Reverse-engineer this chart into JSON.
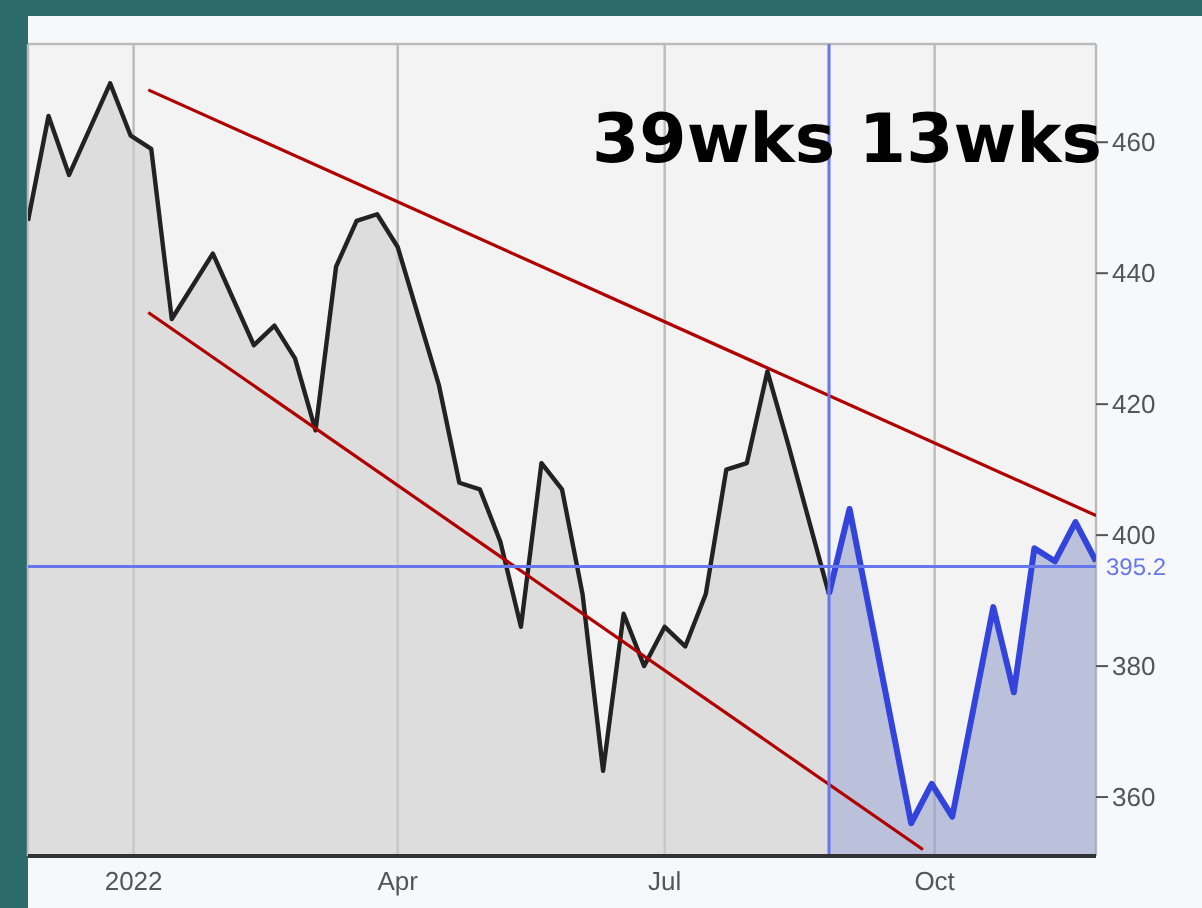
{
  "chart_data": {
    "type": "area",
    "annotations": [
      "39wks 13wks"
    ],
    "series": [
      {
        "color": "#222222",
        "x": [
          "2021-11-26",
          "2021-12-03",
          "2021-12-10",
          "2021-12-24",
          "2021-12-31",
          "2022-01-07",
          "2022-01-14",
          "2022-01-28",
          "2022-02-11",
          "2022-02-18",
          "2022-02-25",
          "2022-03-04",
          "2022-03-11",
          "2022-03-18",
          "2022-03-25",
          "2022-04-01",
          "2022-04-15",
          "2022-04-22",
          "2022-04-29",
          "2022-05-06",
          "2022-05-13",
          "2022-05-20",
          "2022-05-27",
          "2022-06-03",
          "2022-06-10",
          "2022-06-17",
          "2022-06-24",
          "2022-07-01",
          "2022-07-08",
          "2022-07-15",
          "2022-07-22",
          "2022-07-29",
          "2022-08-05",
          "2022-08-12",
          "2022-08-26"
        ],
        "values": [
          448,
          464,
          455,
          469,
          461,
          459,
          433,
          443,
          429,
          432,
          427,
          416,
          441,
          448,
          449,
          444,
          423,
          408,
          407,
          399,
          386,
          411,
          407,
          391,
          364,
          388,
          380,
          386,
          383,
          391,
          410,
          411,
          425,
          414,
          391
        ]
      },
      {
        "color": "#3344dd",
        "x": [
          "2022-08-26",
          "2022-09-02",
          "2022-09-23",
          "2022-09-30",
          "2022-10-07",
          "2022-10-21",
          "2022-10-28",
          "2022-11-04",
          "2022-11-11",
          "2022-11-18",
          "2022-11-25"
        ],
        "values": [
          391,
          404,
          356,
          362,
          357,
          389,
          376,
          398,
          396,
          402,
          396
        ]
      },
      {
        "type": "line",
        "color": "#b00000",
        "x": [
          "2022-01-06",
          "2022-11-25"
        ],
        "values": [
          468,
          403
        ]
      },
      {
        "type": "line",
        "color": "#b00000",
        "x": [
          "2022-01-06",
          "2022-09-27"
        ],
        "values": [
          434,
          352
        ]
      }
    ],
    "xlim": [
      "2021-11-26",
      "2022-11-25"
    ],
    "xticks": [
      {
        "value": "2022-01-01",
        "label": "2022"
      },
      {
        "value": "2022-04-01",
        "label": "Apr"
      },
      {
        "value": "2022-07-01",
        "label": "Jul"
      },
      {
        "value": "2022-10-01",
        "label": "Oct"
      }
    ],
    "ylim": [
      351,
      475
    ],
    "yticks": [
      360,
      380,
      400,
      420,
      440,
      460
    ],
    "ref_lines": [
      {
        "axis": "y",
        "value": 395.2,
        "label": "395.2",
        "color": "#6677ee"
      },
      {
        "axis": "x",
        "value": "2022-08-26",
        "color": "#6677ee"
      }
    ],
    "grid": true,
    "marker": "none"
  }
}
